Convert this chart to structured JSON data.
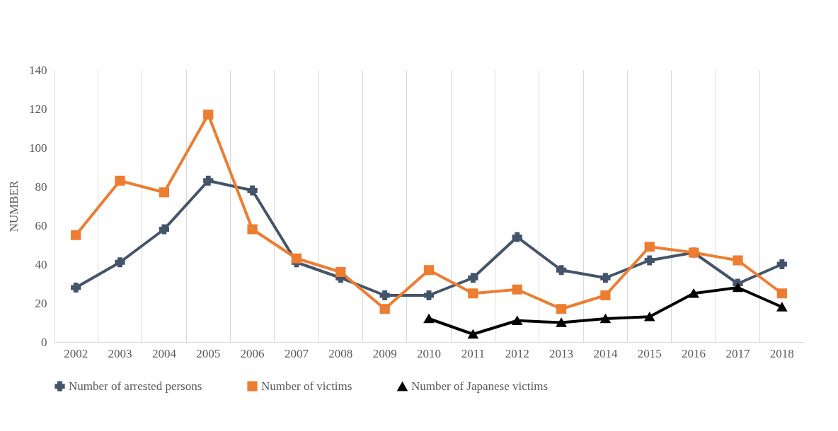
{
  "chart_data": {
    "type": "line",
    "ylabel": "NUMBER",
    "categories": [
      "2002",
      "2003",
      "2004",
      "2005",
      "2006",
      "2007",
      "2008",
      "2009",
      "2010",
      "2011",
      "2012",
      "2013",
      "2014",
      "2015",
      "2016",
      "2017",
      "2018"
    ],
    "series": [
      {
        "name": "Number of arrested persons",
        "color": "#44546a",
        "marker": "cross",
        "values": [
          28,
          41,
          58,
          83,
          78,
          41,
          33,
          24,
          24,
          33,
          54,
          37,
          33,
          42,
          46,
          30,
          40
        ]
      },
      {
        "name": "Number of victims",
        "color": "#ed7d31",
        "marker": "square",
        "values": [
          55,
          83,
          77,
          117,
          58,
          43,
          36,
          17,
          37,
          25,
          27,
          17,
          24,
          49,
          46,
          42,
          25
        ]
      },
      {
        "name": "Number of Japanese victims",
        "color": "#000000",
        "marker": "triangle",
        "values": [
          null,
          null,
          null,
          null,
          null,
          null,
          null,
          null,
          12,
          4,
          11,
          10,
          12,
          13,
          25,
          28,
          18
        ]
      }
    ],
    "ylim": [
      0,
      140
    ],
    "yticks": [
      0,
      20,
      40,
      60,
      80,
      100,
      120,
      140
    ],
    "grid": "x",
    "legend": "bottom",
    "line_style": "solid"
  }
}
